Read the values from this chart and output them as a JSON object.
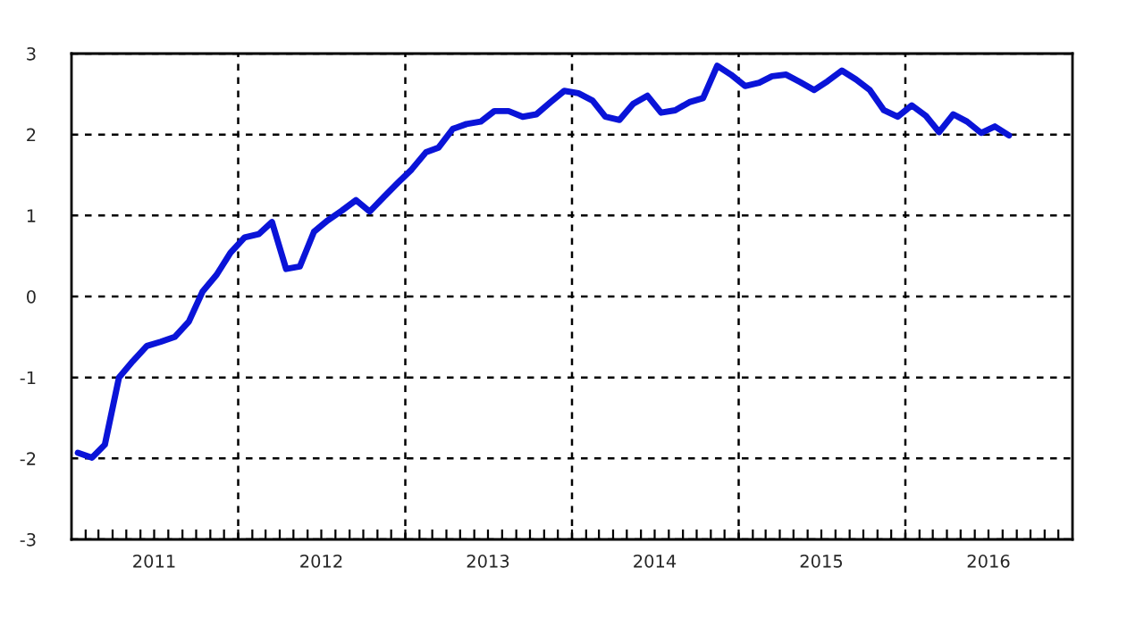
{
  "chart_data": {
    "type": "line",
    "x": [
      "2011-01-15",
      "2011-02-15",
      "2011-03-15",
      "2011-04-15",
      "2011-05-15",
      "2011-06-15",
      "2011-07-15",
      "2011-08-15",
      "2011-09-15",
      "2011-10-15",
      "2011-11-15",
      "2011-12-15",
      "2012-01-15",
      "2012-02-15",
      "2012-03-15",
      "2012-04-15",
      "2012-05-15",
      "2012-06-15",
      "2012-07-15",
      "2012-08-15",
      "2012-09-15",
      "2012-10-15",
      "2012-11-15",
      "2012-12-15",
      "2013-01-15",
      "2013-02-15",
      "2013-03-15",
      "2013-04-15",
      "2013-05-15",
      "2013-06-15",
      "2013-07-15",
      "2013-08-15",
      "2013-09-15",
      "2013-10-15",
      "2013-11-15",
      "2013-12-15",
      "2014-01-15",
      "2014-02-15",
      "2014-03-15",
      "2014-04-15",
      "2014-05-15",
      "2014-06-15",
      "2014-07-15",
      "2014-08-15",
      "2014-09-15",
      "2014-10-15",
      "2014-11-15",
      "2014-12-15",
      "2015-01-15",
      "2015-02-15",
      "2015-03-15",
      "2015-04-15",
      "2015-05-15",
      "2015-06-15",
      "2015-07-15",
      "2015-08-15",
      "2015-09-15",
      "2015-10-15",
      "2015-11-15",
      "2015-12-15",
      "2016-01-15",
      "2016-02-15",
      "2016-03-15",
      "2016-04-15",
      "2016-05-15",
      "2016-06-15",
      "2016-07-15",
      "2016-08-15"
    ],
    "series": [
      {
        "color": "#0a14d8",
        "values": [
          -1.93,
          -1.99,
          -1.83,
          -1.0,
          -0.8,
          -0.61,
          -0.56,
          -0.5,
          -0.31,
          0.06,
          0.27,
          0.54,
          0.73,
          0.77,
          0.92,
          0.34,
          0.37,
          0.8,
          0.94,
          1.06,
          1.19,
          1.05,
          1.23,
          1.4,
          1.57,
          1.78,
          1.84,
          2.07,
          2.13,
          2.16,
          2.29,
          2.29,
          2.22,
          2.25,
          2.4,
          2.54,
          2.51,
          2.42,
          2.22,
          2.18,
          2.38,
          2.48,
          2.27,
          2.3,
          2.4,
          2.45,
          2.85,
          2.74,
          2.6,
          2.64,
          2.72,
          2.74,
          2.65,
          2.55,
          2.66,
          2.79,
          2.68,
          2.55,
          2.3,
          2.22,
          2.36,
          2.23,
          2.03,
          2.25,
          2.16,
          2.02,
          2.1,
          1.99
        ]
      }
    ],
    "xlim": [
      "2011-01-01",
      "2017-01-01"
    ],
    "xticks": [
      {
        "value": "2011-02-01",
        "label": null
      },
      {
        "value": "2011-03-01",
        "label": null
      },
      {
        "value": "2011-04-01",
        "label": null
      },
      {
        "value": "2011-05-01",
        "label": null
      },
      {
        "value": "2011-06-01",
        "label": null
      },
      {
        "value": "2011-07-01",
        "label": "2011"
      },
      {
        "value": "2011-08-01",
        "label": null
      },
      {
        "value": "2011-09-01",
        "label": null
      },
      {
        "value": "2011-10-01",
        "label": null
      },
      {
        "value": "2011-11-01",
        "label": null
      },
      {
        "value": "2011-12-01",
        "label": null
      },
      {
        "value": "2012-01-01",
        "label": null
      },
      {
        "value": "2012-02-01",
        "label": null
      },
      {
        "value": "2012-03-01",
        "label": null
      },
      {
        "value": "2012-04-01",
        "label": null
      },
      {
        "value": "2012-05-01",
        "label": null
      },
      {
        "value": "2012-06-01",
        "label": null
      },
      {
        "value": "2012-07-01",
        "label": "2012"
      },
      {
        "value": "2012-08-01",
        "label": null
      },
      {
        "value": "2012-09-01",
        "label": null
      },
      {
        "value": "2012-10-01",
        "label": null
      },
      {
        "value": "2012-11-01",
        "label": null
      },
      {
        "value": "2012-12-01",
        "label": null
      },
      {
        "value": "2013-01-01",
        "label": null
      },
      {
        "value": "2013-02-01",
        "label": null
      },
      {
        "value": "2013-03-01",
        "label": null
      },
      {
        "value": "2013-04-01",
        "label": null
      },
      {
        "value": "2013-05-01",
        "label": null
      },
      {
        "value": "2013-06-01",
        "label": null
      },
      {
        "value": "2013-07-01",
        "label": "2013"
      },
      {
        "value": "2013-08-01",
        "label": null
      },
      {
        "value": "2013-09-01",
        "label": null
      },
      {
        "value": "2013-10-01",
        "label": null
      },
      {
        "value": "2013-11-01",
        "label": null
      },
      {
        "value": "2013-12-01",
        "label": null
      },
      {
        "value": "2014-01-01",
        "label": null
      },
      {
        "value": "2014-02-01",
        "label": null
      },
      {
        "value": "2014-03-01",
        "label": null
      },
      {
        "value": "2014-04-01",
        "label": null
      },
      {
        "value": "2014-05-01",
        "label": null
      },
      {
        "value": "2014-06-01",
        "label": null
      },
      {
        "value": "2014-07-01",
        "label": "2014"
      },
      {
        "value": "2014-08-01",
        "label": null
      },
      {
        "value": "2014-09-01",
        "label": null
      },
      {
        "value": "2014-10-01",
        "label": null
      },
      {
        "value": "2014-11-01",
        "label": null
      },
      {
        "value": "2014-12-01",
        "label": null
      },
      {
        "value": "2015-01-01",
        "label": null
      },
      {
        "value": "2015-02-01",
        "label": null
      },
      {
        "value": "2015-03-01",
        "label": null
      },
      {
        "value": "2015-04-01",
        "label": null
      },
      {
        "value": "2015-05-01",
        "label": null
      },
      {
        "value": "2015-06-01",
        "label": null
      },
      {
        "value": "2015-07-01",
        "label": "2015"
      },
      {
        "value": "2015-08-01",
        "label": null
      },
      {
        "value": "2015-09-01",
        "label": null
      },
      {
        "value": "2015-10-01",
        "label": null
      },
      {
        "value": "2015-11-01",
        "label": null
      },
      {
        "value": "2015-12-01",
        "label": null
      },
      {
        "value": "2016-01-01",
        "label": null
      },
      {
        "value": "2016-02-01",
        "label": null
      },
      {
        "value": "2016-03-01",
        "label": null
      },
      {
        "value": "2016-04-01",
        "label": null
      },
      {
        "value": "2016-05-01",
        "label": null
      },
      {
        "value": "2016-06-01",
        "label": null
      },
      {
        "value": "2016-07-01",
        "label": "2016"
      },
      {
        "value": "2016-08-01",
        "label": null
      },
      {
        "value": "2016-09-01",
        "label": null
      },
      {
        "value": "2016-10-01",
        "label": null
      },
      {
        "value": "2016-11-01",
        "label": null
      },
      {
        "value": "2016-12-01",
        "label": null
      }
    ],
    "ylim": [
      -3,
      3
    ],
    "yticks": [
      -3,
      -2,
      -1,
      0,
      1,
      2,
      3
    ],
    "grid": true,
    "line_style": "solid",
    "marker": "none"
  }
}
